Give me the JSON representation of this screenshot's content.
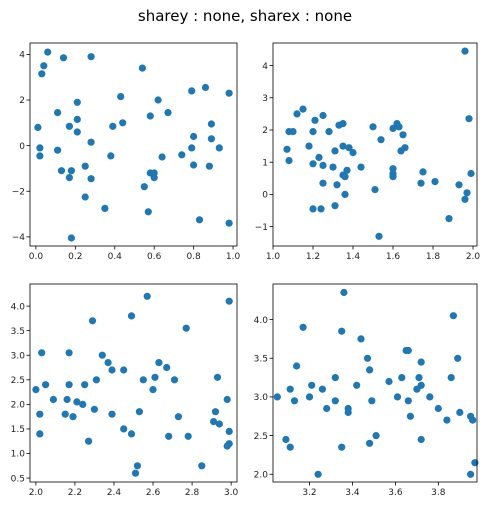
{
  "figure": {
    "suptitle": "sharey : none, sharex : none",
    "marker_color": "#1f77b4"
  },
  "chart_data": [
    {
      "type": "scatter",
      "title": "",
      "xlabel": "",
      "ylabel": "",
      "xlim": [
        -0.03,
        1.02
      ],
      "ylim": [
        -4.4,
        4.5
      ],
      "xticks": [
        0.0,
        0.2,
        0.4,
        0.6,
        0.8,
        1.0
      ],
      "xtick_labels": [
        "0.0",
        "0.2",
        "0.4",
        "0.6",
        "0.8",
        "1.0"
      ],
      "yticks": [
        -4,
        -2,
        0,
        2,
        4
      ],
      "ytick_labels": [
        "−4",
        "−2",
        "0",
        "2",
        "4"
      ],
      "grid": false,
      "points": [
        [
          0.06,
          4.1
        ],
        [
          0.14,
          3.85
        ],
        [
          0.28,
          3.9
        ],
        [
          0.04,
          3.5
        ],
        [
          0.03,
          3.15
        ],
        [
          0.54,
          3.4
        ],
        [
          0.79,
          2.4
        ],
        [
          0.86,
          2.55
        ],
        [
          0.98,
          2.3
        ],
        [
          0.43,
          2.15
        ],
        [
          0.21,
          1.9
        ],
        [
          0.62,
          2.0
        ],
        [
          0.11,
          1.45
        ],
        [
          0.21,
          1.15
        ],
        [
          0.58,
          1.3
        ],
        [
          0.67,
          1.45
        ],
        [
          0.39,
          0.85
        ],
        [
          0.44,
          1.0
        ],
        [
          0.89,
          0.95
        ],
        [
          0.17,
          0.85
        ],
        [
          0.01,
          0.8
        ],
        [
          0.21,
          0.6
        ],
        [
          0.8,
          0.4
        ],
        [
          0.89,
          0.3
        ],
        [
          0.28,
          0.15
        ],
        [
          0.02,
          -0.1
        ],
        [
          0.11,
          -0.2
        ],
        [
          0.79,
          -0.1
        ],
        [
          0.93,
          -0.1
        ],
        [
          0.02,
          -0.45
        ],
        [
          0.38,
          -0.45
        ],
        [
          0.74,
          -0.4
        ],
        [
          0.64,
          -0.5
        ],
        [
          0.25,
          -0.9
        ],
        [
          0.8,
          -0.85
        ],
        [
          0.88,
          -0.9
        ],
        [
          0.13,
          -1.1
        ],
        [
          0.18,
          -1.1
        ],
        [
          0.58,
          -1.2
        ],
        [
          0.6,
          -1.2
        ],
        [
          0.6,
          -1.4
        ],
        [
          0.17,
          -1.4
        ],
        [
          0.28,
          -1.45
        ],
        [
          0.55,
          -1.8
        ],
        [
          0.25,
          -2.25
        ],
        [
          0.35,
          -2.75
        ],
        [
          0.57,
          -2.9
        ],
        [
          0.83,
          -3.25
        ],
        [
          0.98,
          -3.4
        ],
        [
          0.18,
          -4.05
        ]
      ]
    },
    {
      "type": "scatter",
      "title": "",
      "xlabel": "",
      "ylabel": "",
      "xlim": [
        1.0,
        2.02
      ],
      "ylim": [
        -1.6,
        4.7
      ],
      "xticks": [
        1.0,
        1.2,
        1.4,
        1.6,
        1.8,
        2.0
      ],
      "xtick_labels": [
        "1.0",
        "1.2",
        "1.4",
        "1.6",
        "1.8",
        "2.0"
      ],
      "yticks": [
        -1,
        0,
        1,
        2,
        3,
        4
      ],
      "ytick_labels": [
        "−1",
        "0",
        "1",
        "2",
        "3",
        "4"
      ],
      "grid": false,
      "points": [
        [
          1.96,
          4.45
        ],
        [
          1.98,
          2.35
        ],
        [
          1.12,
          2.5
        ],
        [
          1.15,
          2.65
        ],
        [
          1.25,
          2.45
        ],
        [
          1.21,
          2.3
        ],
        [
          1.33,
          2.15
        ],
        [
          1.35,
          2.2
        ],
        [
          1.08,
          1.95
        ],
        [
          1.1,
          1.95
        ],
        [
          1.2,
          1.95
        ],
        [
          1.28,
          1.95
        ],
        [
          1.5,
          2.1
        ],
        [
          1.6,
          2.05
        ],
        [
          1.62,
          2.2
        ],
        [
          1.63,
          2.1
        ],
        [
          1.65,
          1.85
        ],
        [
          1.07,
          1.4
        ],
        [
          1.18,
          1.5
        ],
        [
          1.31,
          1.35
        ],
        [
          1.35,
          1.5
        ],
        [
          1.38,
          1.45
        ],
        [
          1.4,
          1.3
        ],
        [
          1.54,
          1.7
        ],
        [
          1.64,
          1.35
        ],
        [
          1.66,
          1.45
        ],
        [
          1.08,
          1.05
        ],
        [
          1.23,
          1.15
        ],
        [
          1.2,
          0.95
        ],
        [
          1.25,
          0.9
        ],
        [
          1.3,
          0.85
        ],
        [
          1.44,
          0.85
        ],
        [
          1.37,
          0.75
        ],
        [
          1.35,
          0.6
        ],
        [
          1.36,
          0.55
        ],
        [
          1.6,
          0.8
        ],
        [
          1.6,
          0.65
        ],
        [
          1.6,
          0.55
        ],
        [
          1.75,
          0.7
        ],
        [
          1.81,
          0.4
        ],
        [
          1.74,
          0.35
        ],
        [
          1.93,
          0.3
        ],
        [
          1.99,
          0.65
        ],
        [
          1.25,
          0.35
        ],
        [
          1.32,
          0.3
        ],
        [
          1.36,
          0.0
        ],
        [
          1.51,
          0.15
        ],
        [
          1.97,
          0.05
        ],
        [
          1.96,
          -0.15
        ],
        [
          1.88,
          -0.75
        ],
        [
          1.2,
          -0.45
        ],
        [
          1.24,
          -0.45
        ],
        [
          1.31,
          -0.35
        ],
        [
          1.53,
          -1.3
        ]
      ]
    },
    {
      "type": "scatter",
      "title": "",
      "xlabel": "",
      "ylabel": "",
      "xlim": [
        1.97,
        3.03
      ],
      "ylim": [
        0.42,
        4.45
      ],
      "xticks": [
        2.0,
        2.2,
        2.4,
        2.6,
        2.8,
        3.0
      ],
      "xtick_labels": [
        "2.0",
        "2.2",
        "2.4",
        "2.6",
        "2.8",
        "3.0"
      ],
      "yticks": [
        0.5,
        1.0,
        1.5,
        2.0,
        2.5,
        3.0,
        3.5,
        4.0
      ],
      "ytick_labels": [
        "0.5",
        "1.0",
        "1.5",
        "2.0",
        "2.5",
        "3.0",
        "3.5",
        "4.0"
      ],
      "grid": false,
      "points": [
        [
          2.57,
          4.2
        ],
        [
          2.99,
          4.1
        ],
        [
          2.49,
          3.8
        ],
        [
          2.29,
          3.7
        ],
        [
          2.77,
          3.55
        ],
        [
          2.03,
          3.05
        ],
        [
          2.17,
          3.05
        ],
        [
          2.34,
          3.0
        ],
        [
          2.37,
          2.85
        ],
        [
          2.39,
          2.7
        ],
        [
          2.45,
          2.7
        ],
        [
          2.63,
          2.85
        ],
        [
          2.67,
          2.75
        ],
        [
          2.05,
          2.4
        ],
        [
          2.17,
          2.4
        ],
        [
          2.25,
          2.4
        ],
        [
          2.31,
          2.5
        ],
        [
          2.55,
          2.5
        ],
        [
          2.61,
          2.55
        ],
        [
          2.71,
          2.5
        ],
        [
          2.0,
          2.3
        ],
        [
          2.09,
          2.1
        ],
        [
          2.16,
          2.1
        ],
        [
          2.21,
          2.05
        ],
        [
          2.24,
          2.0
        ],
        [
          2.6,
          2.3
        ],
        [
          2.93,
          2.55
        ],
        [
          2.98,
          2.1
        ],
        [
          2.3,
          1.9
        ],
        [
          2.15,
          1.8
        ],
        [
          2.02,
          1.8
        ],
        [
          2.19,
          1.75
        ],
        [
          2.39,
          1.8
        ],
        [
          2.53,
          1.85
        ],
        [
          2.73,
          1.75
        ],
        [
          2.92,
          1.85
        ],
        [
          2.91,
          1.65
        ],
        [
          2.94,
          1.6
        ],
        [
          2.99,
          1.45
        ],
        [
          2.02,
          1.4
        ],
        [
          2.45,
          1.5
        ],
        [
          2.49,
          1.4
        ],
        [
          2.68,
          1.35
        ],
        [
          2.78,
          1.35
        ],
        [
          2.27,
          1.25
        ],
        [
          2.99,
          1.2
        ],
        [
          2.98,
          1.15
        ],
        [
          2.52,
          0.75
        ],
        [
          2.85,
          0.75
        ],
        [
          2.51,
          0.6
        ]
      ]
    },
    {
      "type": "scatter",
      "title": "",
      "xlabel": "",
      "ylabel": "",
      "xlim": [
        3.03,
        3.98
      ],
      "ylim": [
        1.9,
        4.46
      ],
      "xticks": [
        3.2,
        3.4,
        3.6,
        3.8
      ],
      "xtick_labels": [
        "3.2",
        "3.4",
        "3.6",
        "3.8"
      ],
      "yticks": [
        2.0,
        2.5,
        3.0,
        3.5,
        4.0
      ],
      "ytick_labels": [
        "2.0",
        "2.5",
        "3.0",
        "3.5",
        "4.0"
      ],
      "grid": false,
      "points": [
        [
          3.36,
          4.35
        ],
        [
          3.87,
          4.05
        ],
        [
          3.17,
          3.9
        ],
        [
          3.35,
          3.85
        ],
        [
          3.44,
          3.75
        ],
        [
          3.65,
          3.6
        ],
        [
          3.66,
          3.6
        ],
        [
          3.89,
          3.5
        ],
        [
          3.14,
          3.4
        ],
        [
          3.47,
          3.5
        ],
        [
          3.72,
          3.45
        ],
        [
          3.48,
          3.35
        ],
        [
          3.32,
          3.25
        ],
        [
          3.63,
          3.25
        ],
        [
          3.86,
          3.25
        ],
        [
          3.71,
          3.25
        ],
        [
          3.21,
          3.15
        ],
        [
          3.42,
          3.15
        ],
        [
          3.57,
          3.2
        ],
        [
          3.72,
          3.15
        ],
        [
          3.11,
          3.1
        ],
        [
          3.26,
          3.1
        ],
        [
          3.05,
          3.0
        ],
        [
          3.2,
          3.0
        ],
        [
          3.32,
          2.95
        ],
        [
          3.49,
          2.95
        ],
        [
          3.7,
          3.1
        ],
        [
          3.76,
          3.0
        ],
        [
          3.13,
          2.95
        ],
        [
          3.28,
          2.85
        ],
        [
          3.38,
          2.85
        ],
        [
          3.38,
          2.8
        ],
        [
          3.61,
          3.0
        ],
        [
          3.66,
          2.95
        ],
        [
          3.8,
          2.85
        ],
        [
          3.9,
          2.8
        ],
        [
          3.95,
          2.75
        ],
        [
          3.67,
          2.75
        ],
        [
          3.84,
          2.7
        ],
        [
          3.96,
          2.7
        ],
        [
          3.51,
          2.5
        ],
        [
          3.72,
          2.45
        ],
        [
          3.48,
          2.4
        ],
        [
          3.09,
          2.45
        ],
        [
          3.11,
          2.35
        ],
        [
          3.35,
          2.35
        ],
        [
          3.24,
          2.0
        ],
        [
          3.97,
          2.15
        ],
        [
          3.95,
          2.0
        ]
      ]
    }
  ]
}
